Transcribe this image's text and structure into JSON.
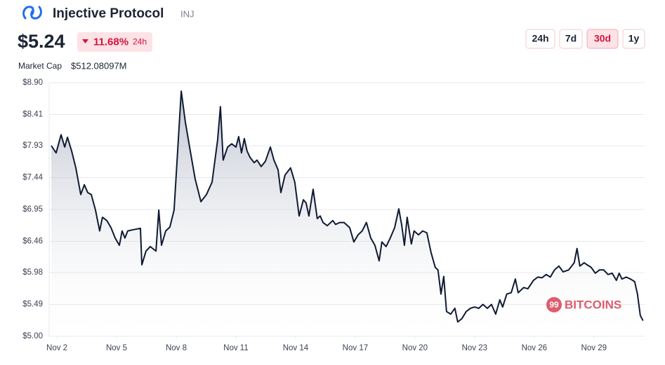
{
  "header": {
    "title": "Injective Protocol",
    "symbol": "INJ",
    "price": "$5.24",
    "change": "11.68%",
    "change_period": "24h",
    "market_cap_label": "Market Cap",
    "market_cap": "$512.08097M"
  },
  "range_buttons": [
    "24h",
    "7d",
    "30d",
    "1y"
  ],
  "active_range": "30d",
  "watermark": {
    "badge": "99",
    "text": "BITCOINS"
  },
  "chart_data": {
    "type": "line",
    "x": [
      1.72,
      1.96,
      2.21,
      2.39,
      2.53,
      2.74,
      2.95,
      3.2,
      3.38,
      3.55,
      3.73,
      3.94,
      4.15,
      4.29,
      4.51,
      4.72,
      4.93,
      5.14,
      5.28,
      5.42,
      5.56,
      5.85,
      6.2,
      6.27,
      6.48,
      6.69,
      6.98,
      7.12,
      7.26,
      7.47,
      7.68,
      7.89,
      8.04,
      8.25,
      8.46,
      8.67,
      8.95,
      9.24,
      9.52,
      9.8,
      10.08,
      10.22,
      10.36,
      10.58,
      10.79,
      11.0,
      11.14,
      11.28,
      11.42,
      11.56,
      11.71,
      11.92,
      12.06,
      12.27,
      12.48,
      12.73,
      12.91,
      13.12,
      13.26,
      13.47,
      13.75,
      13.96,
      14.18,
      14.39,
      14.53,
      14.67,
      14.88,
      15.09,
      15.24,
      15.38,
      15.59,
      15.87,
      16.01,
      16.22,
      16.44,
      16.72,
      16.93,
      17.14,
      17.35,
      17.56,
      17.78,
      17.99,
      18.2,
      18.34,
      18.55,
      18.76,
      18.98,
      19.19,
      19.33,
      19.47,
      19.61,
      19.82,
      19.96,
      20.18,
      20.39,
      20.6,
      20.81,
      21.02,
      21.16,
      21.31,
      21.45,
      21.59,
      21.8,
      22.01,
      22.15,
      22.36,
      22.58,
      22.79,
      23.0,
      23.21,
      23.42,
      23.64,
      23.85,
      24.06,
      24.27,
      24.41,
      24.62,
      24.84,
      25.05,
      25.19,
      25.47,
      25.68,
      25.96,
      26.18,
      26.39,
      26.6,
      26.81,
      27.02,
      27.24,
      27.45,
      27.73,
      28.01,
      28.15,
      28.29,
      28.51,
      28.65,
      28.86,
      29.07,
      29.28,
      29.49,
      29.71,
      29.92,
      30.13,
      30.27,
      30.41,
      30.62,
      30.84,
      31.05,
      31.19,
      31.33,
      31.47
    ],
    "series": [
      {
        "name": "INJ",
        "color": "#0f1a33",
        "values": [
          7.93,
          7.82,
          8.1,
          7.91,
          8.06,
          7.85,
          7.59,
          7.18,
          7.33,
          7.21,
          7.18,
          6.94,
          6.62,
          6.83,
          6.78,
          6.67,
          6.51,
          6.4,
          6.62,
          6.51,
          6.62,
          6.64,
          6.66,
          6.1,
          6.31,
          6.38,
          6.31,
          6.94,
          6.4,
          6.62,
          6.68,
          6.94,
          7.69,
          8.77,
          8.29,
          7.91,
          7.42,
          7.07,
          7.18,
          7.37,
          8.02,
          8.53,
          7.71,
          7.91,
          7.96,
          7.91,
          8.07,
          7.82,
          8.04,
          7.85,
          7.75,
          7.67,
          7.71,
          7.61,
          7.69,
          7.91,
          7.71,
          7.56,
          7.21,
          7.48,
          7.59,
          7.37,
          6.85,
          7.1,
          7.05,
          6.85,
          7.26,
          6.81,
          6.85,
          6.75,
          6.7,
          6.78,
          6.72,
          6.75,
          6.75,
          6.67,
          6.45,
          6.56,
          6.62,
          6.75,
          6.51,
          6.4,
          6.16,
          6.45,
          6.38,
          6.51,
          6.67,
          6.96,
          6.72,
          6.4,
          6.83,
          6.42,
          6.62,
          6.56,
          6.62,
          6.59,
          6.29,
          6.06,
          6.02,
          5.65,
          5.92,
          5.38,
          5.34,
          5.43,
          5.22,
          5.27,
          5.38,
          5.43,
          5.45,
          5.43,
          5.49,
          5.43,
          5.49,
          5.34,
          5.56,
          5.45,
          5.65,
          5.67,
          5.88,
          5.67,
          5.75,
          5.73,
          5.86,
          5.91,
          5.9,
          5.95,
          5.91,
          6.02,
          6.08,
          5.99,
          6.02,
          6.13,
          6.35,
          6.08,
          6.13,
          6.1,
          6.06,
          5.97,
          6.02,
          6.02,
          5.95,
          5.97,
          5.86,
          5.97,
          5.88,
          5.91,
          5.88,
          5.84,
          5.65,
          5.32,
          5.24
        ]
      }
    ],
    "xlim": [
      1.61,
      31.55
    ],
    "ylim": [
      5.0,
      8.9
    ],
    "xticks": [
      {
        "value": 2,
        "label": "Nov 2"
      },
      {
        "value": 5,
        "label": "Nov 5"
      },
      {
        "value": 8,
        "label": "Nov 8"
      },
      {
        "value": 11,
        "label": "Nov 11"
      },
      {
        "value": 14,
        "label": "Nov 14"
      },
      {
        "value": 17,
        "label": "Nov 17"
      },
      {
        "value": 20,
        "label": "Nov 20"
      },
      {
        "value": 23,
        "label": "Nov 23"
      },
      {
        "value": 26,
        "label": "Nov 26"
      },
      {
        "value": 29,
        "label": "Nov 29"
      }
    ],
    "yticks": [
      {
        "value": 5.0,
        "label": "$5.00"
      },
      {
        "value": 5.49,
        "label": "$5.49"
      },
      {
        "value": 5.98,
        "label": "$5.98"
      },
      {
        "value": 6.46,
        "label": "$6.46"
      },
      {
        "value": 6.95,
        "label": "$6.95"
      },
      {
        "value": 7.44,
        "label": "$7.44"
      },
      {
        "value": 7.93,
        "label": "$7.93"
      },
      {
        "value": 8.41,
        "label": "$8.41"
      },
      {
        "value": 8.9,
        "label": "$8.90"
      }
    ],
    "grid": true
  }
}
